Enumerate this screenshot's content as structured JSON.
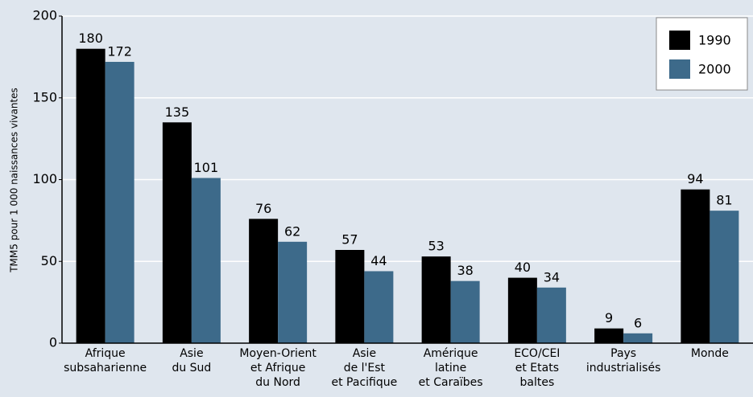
{
  "chart_data": {
    "type": "bar",
    "y_label": "TMM5 pour 1 000 naissances vivantes",
    "categories": [
      [
        "Afrique",
        "subsaharienne"
      ],
      [
        "Asie",
        "du Sud"
      ],
      [
        "Moyen-Orient",
        "et Afrique",
        "du Nord"
      ],
      [
        "Asie",
        "de l'Est",
        "et Pacifique"
      ],
      [
        "Amérique",
        "latine",
        "et Caraïbes"
      ],
      [
        "ECO/CEI",
        "et Etats",
        "baltes"
      ],
      [
        "Pays",
        "industrialisés"
      ],
      [
        "Monde"
      ]
    ],
    "series": [
      {
        "name": "1990",
        "color": "#000000",
        "values": [
          180,
          135,
          76,
          57,
          53,
          40,
          9,
          94
        ]
      },
      {
        "name": "2000",
        "color": "#3d6a8a",
        "values": [
          172,
          101,
          62,
          44,
          38,
          34,
          6,
          81
        ]
      }
    ],
    "ylim": [
      0,
      200
    ],
    "yticks": [
      0,
      50,
      100,
      150,
      200
    ],
    "grid": true,
    "legend": "top-right"
  }
}
